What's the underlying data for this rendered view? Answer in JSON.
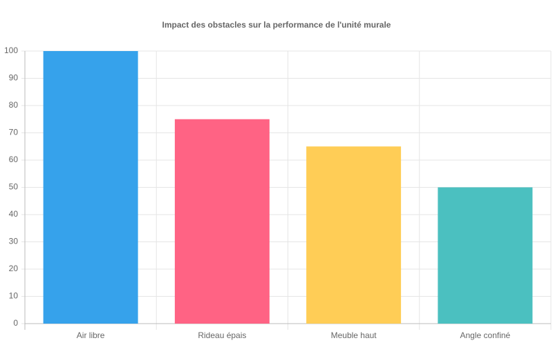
{
  "chart_data": {
    "type": "bar",
    "title": "Impact des obstacles sur la performance de l'unité murale",
    "categories": [
      "Air libre",
      "Rideau épais",
      "Meuble haut",
      "Angle confiné"
    ],
    "values": [
      100,
      75,
      65,
      50
    ],
    "colors": [
      "#36a2eb",
      "#ff6384",
      "#ffcd56",
      "#4bc0c0"
    ],
    "ylim": [
      0,
      100
    ],
    "yticks": [
      0,
      10,
      20,
      30,
      40,
      50,
      60,
      70,
      80,
      90,
      100
    ],
    "grid": true
  }
}
